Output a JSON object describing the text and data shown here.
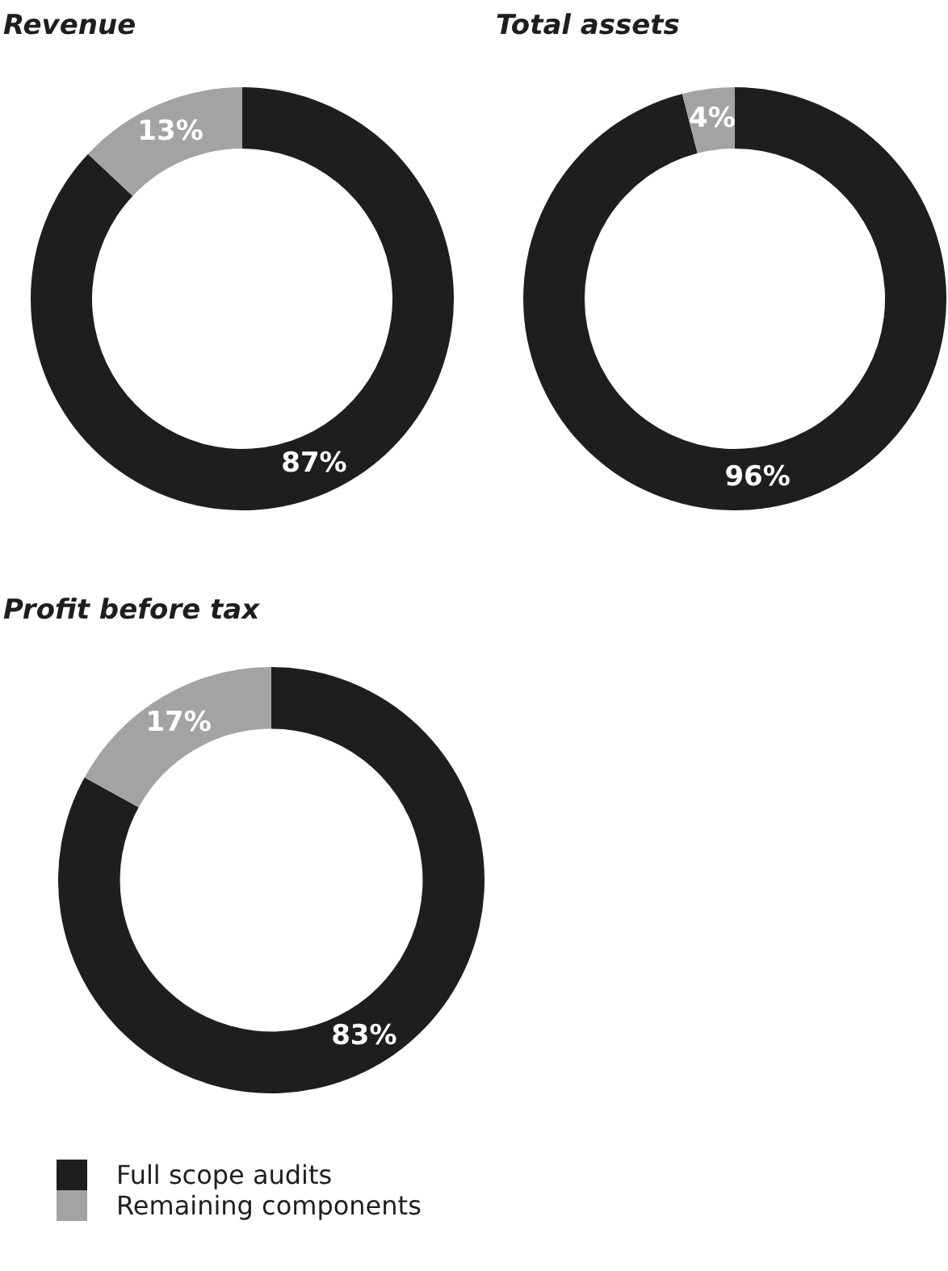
{
  "chart_data": [
    {
      "type": "donut",
      "title": "Revenue",
      "categories": [
        null,
        null
      ],
      "values": [
        87,
        13
      ],
      "colors": [
        "#1e1e1e",
        "#a3a3a3"
      ],
      "value_labels": [
        "87%",
        "13%"
      ]
    },
    {
      "type": "donut",
      "title": "Total assets",
      "categories": [
        null,
        null
      ],
      "values": [
        96,
        4
      ],
      "colors": [
        "#1e1e1e",
        "#a3a3a3"
      ],
      "value_labels": [
        "96%",
        "4%"
      ]
    },
    {
      "type": "donut",
      "title": "Profit before tax",
      "categories": [
        "Full scope audits",
        "Remaining components"
      ],
      "values": [
        83,
        17
      ],
      "colors": [
        "#1e1e1e",
        "#a3a3a3"
      ],
      "value_labels": [
        "83%",
        "17%"
      ],
      "legend": "bottom left"
    }
  ]
}
